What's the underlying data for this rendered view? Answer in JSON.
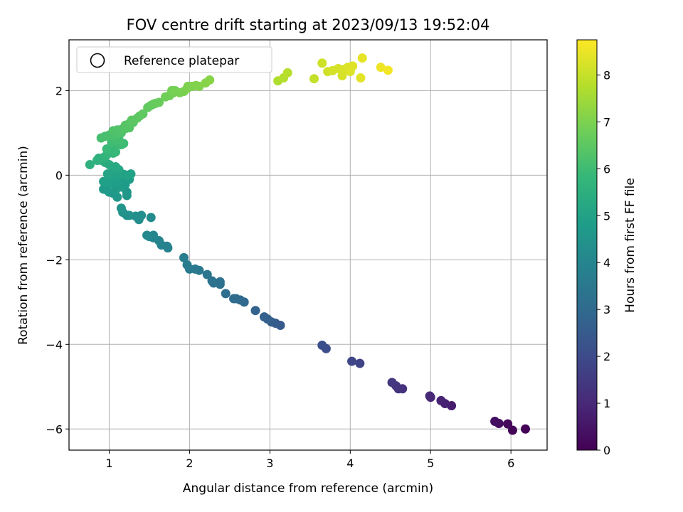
{
  "chart_data": {
    "type": "scatter",
    "title": "FOV centre drift starting at 2023/09/13 19:52:04",
    "xlabel": "Angular distance from reference (arcmin)",
    "ylabel": "Rotation from reference (arcmin)",
    "xlim": [
      0.5,
      6.45
    ],
    "ylim": [
      -6.5,
      3.2
    ],
    "xticks": [
      1,
      2,
      3,
      4,
      5,
      6
    ],
    "yticks": [
      -6,
      -4,
      -2,
      0,
      2
    ],
    "grid": true,
    "legend": {
      "position": "top-left",
      "entries": [
        "Reference platepar"
      ],
      "marker": "hollow-circle"
    },
    "colorbar": {
      "label": "Hours from first FF file",
      "colormap": "viridis",
      "range": [
        0,
        8.75
      ],
      "ticks": [
        0,
        1,
        2,
        3,
        4,
        5,
        6,
        7,
        8
      ]
    },
    "points": [
      {
        "x": 6.18,
        "y": -6.0,
        "c": 0.05
      },
      {
        "x": 6.02,
        "y": -6.03,
        "c": 0.1
      },
      {
        "x": 5.96,
        "y": -5.88,
        "c": 0.2
      },
      {
        "x": 5.85,
        "y": -5.87,
        "c": 0.3
      },
      {
        "x": 5.8,
        "y": -5.82,
        "c": 0.35
      },
      {
        "x": 5.26,
        "y": -5.45,
        "c": 0.7
      },
      {
        "x": 5.18,
        "y": -5.4,
        "c": 0.8
      },
      {
        "x": 5.13,
        "y": -5.33,
        "c": 0.85
      },
      {
        "x": 5.0,
        "y": -5.25,
        "c": 0.95
      },
      {
        "x": 4.99,
        "y": -5.22,
        "c": 1.0
      },
      {
        "x": 4.65,
        "y": -5.05,
        "c": 1.25
      },
      {
        "x": 4.6,
        "y": -5.05,
        "c": 1.3
      },
      {
        "x": 4.57,
        "y": -4.98,
        "c": 1.35
      },
      {
        "x": 4.52,
        "y": -4.9,
        "c": 1.4
      },
      {
        "x": 4.12,
        "y": -4.45,
        "c": 1.8
      },
      {
        "x": 4.02,
        "y": -4.4,
        "c": 1.85
      },
      {
        "x": 3.7,
        "y": -4.1,
        "c": 2.1
      },
      {
        "x": 3.65,
        "y": -4.02,
        "c": 2.15
      },
      {
        "x": 3.13,
        "y": -3.55,
        "c": 2.5
      },
      {
        "x": 3.07,
        "y": -3.5,
        "c": 2.55
      },
      {
        "x": 3.02,
        "y": -3.47,
        "c": 2.6
      },
      {
        "x": 2.97,
        "y": -3.4,
        "c": 2.65
      },
      {
        "x": 2.93,
        "y": -3.35,
        "c": 2.7
      },
      {
        "x": 2.82,
        "y": -3.2,
        "c": 2.8
      },
      {
        "x": 2.68,
        "y": -3.0,
        "c": 2.95
      },
      {
        "x": 2.63,
        "y": -2.95,
        "c": 3.0
      },
      {
        "x": 2.58,
        "y": -2.92,
        "c": 3.05
      },
      {
        "x": 2.55,
        "y": -2.92,
        "c": 3.08
      },
      {
        "x": 2.45,
        "y": -2.8,
        "c": 3.15
      },
      {
        "x": 2.38,
        "y": -2.58,
        "c": 3.25
      },
      {
        "x": 2.38,
        "y": -2.52,
        "c": 3.28
      },
      {
        "x": 2.3,
        "y": -2.55,
        "c": 3.3
      },
      {
        "x": 2.28,
        "y": -2.5,
        "c": 3.32
      },
      {
        "x": 2.22,
        "y": -2.35,
        "c": 3.4
      },
      {
        "x": 2.12,
        "y": -2.25,
        "c": 3.5
      },
      {
        "x": 2.07,
        "y": -2.22,
        "c": 3.55
      },
      {
        "x": 2.0,
        "y": -2.22,
        "c": 3.6
      },
      {
        "x": 1.97,
        "y": -2.12,
        "c": 3.65
      },
      {
        "x": 1.93,
        "y": -1.95,
        "c": 3.7
      },
      {
        "x": 1.73,
        "y": -1.72,
        "c": 3.85
      },
      {
        "x": 1.72,
        "y": -1.68,
        "c": 3.88
      },
      {
        "x": 1.65,
        "y": -1.65,
        "c": 3.9
      },
      {
        "x": 1.62,
        "y": -1.55,
        "c": 3.95
      },
      {
        "x": 1.55,
        "y": -1.48,
        "c": 4.0
      },
      {
        "x": 1.55,
        "y": -1.42,
        "c": 4.02
      },
      {
        "x": 1.5,
        "y": -1.45,
        "c": 4.05
      },
      {
        "x": 1.47,
        "y": -1.42,
        "c": 4.08
      },
      {
        "x": 1.52,
        "y": -1.0,
        "c": 4.2
      },
      {
        "x": 1.4,
        "y": -0.95,
        "c": 4.3
      },
      {
        "x": 1.37,
        "y": -1.05,
        "c": 4.32
      },
      {
        "x": 1.33,
        "y": -0.97,
        "c": 4.35
      },
      {
        "x": 1.25,
        "y": -0.95,
        "c": 4.4
      },
      {
        "x": 1.22,
        "y": -0.95,
        "c": 4.42
      },
      {
        "x": 1.17,
        "y": -0.88,
        "c": 4.45
      },
      {
        "x": 1.15,
        "y": -0.78,
        "c": 4.5
      },
      {
        "x": 1.22,
        "y": -0.48,
        "c": 4.6
      },
      {
        "x": 1.22,
        "y": -0.4,
        "c": 4.62
      },
      {
        "x": 1.1,
        "y": -0.52,
        "c": 4.65
      },
      {
        "x": 1.05,
        "y": -0.43,
        "c": 4.68
      },
      {
        "x": 1.0,
        "y": -0.4,
        "c": 4.7
      },
      {
        "x": 0.97,
        "y": -0.35,
        "c": 4.72
      },
      {
        "x": 0.93,
        "y": -0.33,
        "c": 4.74
      },
      {
        "x": 1.08,
        "y": -0.35,
        "c": 4.76
      },
      {
        "x": 1.15,
        "y": -0.28,
        "c": 4.78
      },
      {
        "x": 1.2,
        "y": -0.22,
        "c": 4.8
      },
      {
        "x": 1.25,
        "y": -0.1,
        "c": 4.82
      },
      {
        "x": 1.18,
        "y": -0.05,
        "c": 4.84
      },
      {
        "x": 1.1,
        "y": -0.15,
        "c": 4.86
      },
      {
        "x": 1.05,
        "y": -0.18,
        "c": 4.88
      },
      {
        "x": 1.0,
        "y": -0.2,
        "c": 4.9
      },
      {
        "x": 0.95,
        "y": -0.17,
        "c": 4.92
      },
      {
        "x": 0.93,
        "y": -0.15,
        "c": 4.93
      },
      {
        "x": 1.03,
        "y": -0.1,
        "c": 4.95
      },
      {
        "x": 1.07,
        "y": -0.05,
        "c": 4.97
      },
      {
        "x": 1.12,
        "y": 0.02,
        "c": 5.0
      },
      {
        "x": 1.18,
        "y": 0.02,
        "c": 5.02
      },
      {
        "x": 1.22,
        "y": 0.0,
        "c": 5.04
      },
      {
        "x": 1.27,
        "y": 0.03,
        "c": 5.05
      },
      {
        "x": 1.03,
        "y": 0.05,
        "c": 5.08
      },
      {
        "x": 0.98,
        "y": 0.03,
        "c": 5.1
      },
      {
        "x": 1.05,
        "y": 0.12,
        "c": 5.15
      },
      {
        "x": 1.12,
        "y": 0.13,
        "c": 5.18
      },
      {
        "x": 1.08,
        "y": 0.2,
        "c": 5.25
      },
      {
        "x": 1.0,
        "y": 0.25,
        "c": 5.3
      },
      {
        "x": 0.95,
        "y": 0.3,
        "c": 5.4
      },
      {
        "x": 0.9,
        "y": 0.35,
        "c": 5.45
      },
      {
        "x": 0.87,
        "y": 0.4,
        "c": 5.5
      },
      {
        "x": 0.76,
        "y": 0.25,
        "c": 5.55
      },
      {
        "x": 0.85,
        "y": 0.35,
        "c": 5.6
      },
      {
        "x": 0.93,
        "y": 0.42,
        "c": 5.65
      },
      {
        "x": 0.97,
        "y": 0.48,
        "c": 5.7
      },
      {
        "x": 1.05,
        "y": 0.52,
        "c": 5.75
      },
      {
        "x": 1.0,
        "y": 0.6,
        "c": 5.8
      },
      {
        "x": 1.05,
        "y": 0.65,
        "c": 5.85
      },
      {
        "x": 1.08,
        "y": 0.55,
        "c": 5.88
      },
      {
        "x": 0.97,
        "y": 0.62,
        "c": 5.9
      },
      {
        "x": 1.15,
        "y": 0.72,
        "c": 5.95
      },
      {
        "x": 1.1,
        "y": 0.75,
        "c": 5.98
      },
      {
        "x": 1.18,
        "y": 0.75,
        "c": 6.0
      },
      {
        "x": 1.03,
        "y": 0.78,
        "c": 6.02
      },
      {
        "x": 1.08,
        "y": 0.82,
        "c": 6.05
      },
      {
        "x": 1.12,
        "y": 0.85,
        "c": 6.08
      },
      {
        "x": 1.05,
        "y": 0.88,
        "c": 6.1
      },
      {
        "x": 0.9,
        "y": 0.88,
        "c": 6.12
      },
      {
        "x": 0.95,
        "y": 0.92,
        "c": 6.15
      },
      {
        "x": 1.0,
        "y": 0.95,
        "c": 6.18
      },
      {
        "x": 1.05,
        "y": 0.95,
        "c": 6.2
      },
      {
        "x": 1.1,
        "y": 0.98,
        "c": 6.22
      },
      {
        "x": 1.15,
        "y": 1.0,
        "c": 6.25
      },
      {
        "x": 1.05,
        "y": 1.05,
        "c": 6.28
      },
      {
        "x": 1.1,
        "y": 1.07,
        "c": 6.3
      },
      {
        "x": 1.15,
        "y": 1.08,
        "c": 6.32
      },
      {
        "x": 1.2,
        "y": 1.1,
        "c": 6.35
      },
      {
        "x": 1.25,
        "y": 1.12,
        "c": 6.37
      },
      {
        "x": 1.2,
        "y": 1.18,
        "c": 6.4
      },
      {
        "x": 1.25,
        "y": 1.22,
        "c": 6.42
      },
      {
        "x": 1.3,
        "y": 1.25,
        "c": 6.45
      },
      {
        "x": 1.28,
        "y": 1.3,
        "c": 6.48
      },
      {
        "x": 1.35,
        "y": 1.35,
        "c": 6.5
      },
      {
        "x": 1.38,
        "y": 1.4,
        "c": 6.52
      },
      {
        "x": 1.42,
        "y": 1.45,
        "c": 6.55
      },
      {
        "x": 1.48,
        "y": 1.6,
        "c": 6.6
      },
      {
        "x": 1.52,
        "y": 1.65,
        "c": 6.62
      },
      {
        "x": 1.55,
        "y": 1.68,
        "c": 6.64
      },
      {
        "x": 1.58,
        "y": 1.7,
        "c": 6.66
      },
      {
        "x": 1.62,
        "y": 1.72,
        "c": 6.7
      },
      {
        "x": 1.7,
        "y": 1.85,
        "c": 6.8
      },
      {
        "x": 1.75,
        "y": 1.88,
        "c": 6.82
      },
      {
        "x": 1.8,
        "y": 1.95,
        "c": 6.85
      },
      {
        "x": 1.78,
        "y": 2.0,
        "c": 6.88
      },
      {
        "x": 1.82,
        "y": 2.0,
        "c": 6.9
      },
      {
        "x": 1.88,
        "y": 1.95,
        "c": 6.92
      },
      {
        "x": 1.93,
        "y": 1.98,
        "c": 6.95
      },
      {
        "x": 1.97,
        "y": 2.05,
        "c": 6.97
      },
      {
        "x": 1.98,
        "y": 2.1,
        "c": 7.0
      },
      {
        "x": 2.03,
        "y": 2.1,
        "c": 7.02
      },
      {
        "x": 2.08,
        "y": 2.12,
        "c": 7.05
      },
      {
        "x": 2.12,
        "y": 2.1,
        "c": 7.08
      },
      {
        "x": 2.2,
        "y": 2.18,
        "c": 7.12
      },
      {
        "x": 2.25,
        "y": 2.25,
        "c": 7.15
      },
      {
        "x": 3.1,
        "y": 2.23,
        "c": 7.7
      },
      {
        "x": 3.17,
        "y": 2.3,
        "c": 7.75
      },
      {
        "x": 3.22,
        "y": 2.42,
        "c": 7.8
      },
      {
        "x": 3.55,
        "y": 2.28,
        "c": 8.0
      },
      {
        "x": 3.65,
        "y": 2.65,
        "c": 8.1
      },
      {
        "x": 3.72,
        "y": 2.45,
        "c": 8.15
      },
      {
        "x": 3.78,
        "y": 2.47,
        "c": 8.18
      },
      {
        "x": 3.85,
        "y": 2.52,
        "c": 8.2
      },
      {
        "x": 3.9,
        "y": 2.35,
        "c": 8.22
      },
      {
        "x": 3.92,
        "y": 2.5,
        "c": 8.25
      },
      {
        "x": 3.97,
        "y": 2.55,
        "c": 8.28
      },
      {
        "x": 4.0,
        "y": 2.45,
        "c": 8.3
      },
      {
        "x": 4.03,
        "y": 2.58,
        "c": 8.33
      },
      {
        "x": 4.13,
        "y": 2.3,
        "c": 8.4
      },
      {
        "x": 4.15,
        "y": 2.77,
        "c": 8.45
      },
      {
        "x": 4.38,
        "y": 2.55,
        "c": 8.55
      },
      {
        "x": 4.47,
        "y": 2.48,
        "c": 8.6
      }
    ]
  }
}
